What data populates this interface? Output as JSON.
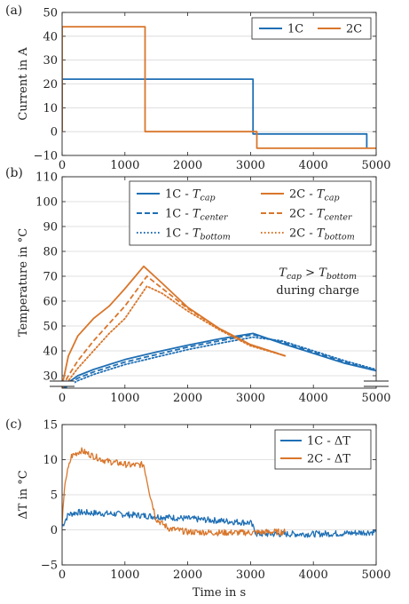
{
  "figure": {
    "panels": [
      {
        "tag": "(a)"
      },
      {
        "tag": "(b)"
      },
      {
        "tag": "(c)"
      }
    ]
  },
  "chart_data": [
    {
      "type": "line",
      "tag": "(a)",
      "xlabel": "",
      "ylabel": "Current in A",
      "xlim": [
        0,
        5000
      ],
      "ylim": [
        -10,
        50
      ],
      "xticks": [
        "0",
        "1000",
        "2000",
        "3000",
        "4000",
        "5000"
      ],
      "yticks": [
        "−10",
        "0",
        "10",
        "20",
        "30",
        "40",
        "50"
      ],
      "grid": "horizontal",
      "legend_position": "top-right",
      "legend_layout": "row",
      "series": [
        {
          "name": "1C",
          "color": "#1f6fb4",
          "style": "solid",
          "x": [
            0,
            0,
            3040,
            3040,
            4850,
            4850
          ],
          "y": [
            0,
            22,
            22,
            -1,
            -1,
            -7
          ]
        },
        {
          "name": "2C",
          "color": "#d9762b",
          "style": "solid",
          "x": [
            0,
            0,
            1320,
            1320,
            3100,
            3100,
            5000
          ],
          "y": [
            0,
            44,
            44,
            0,
            0,
            -7,
            -7
          ]
        }
      ]
    },
    {
      "type": "line",
      "tag": "(b)",
      "xlabel": "",
      "ylabel": "Temperature in °C",
      "xlim": [
        0,
        5000
      ],
      "ylim": [
        25,
        110
      ],
      "xticks": [
        "0",
        "1000",
        "2000",
        "3000",
        "4000",
        "5000"
      ],
      "yticks": [
        "30",
        "40",
        "50",
        "60",
        "70",
        "80",
        "90",
        "100",
        "110"
      ],
      "grid": "horizontal",
      "axis_break": true,
      "legend_position": "top-right",
      "legend_layout": "two-column",
      "annotation": {
        "line1_base": "T",
        "line1_sub": "cap",
        "line1_op": " > ",
        "line1_base2": "T",
        "line1_sub2": "bottom",
        "line2": "during charge",
        "anchor_x": 4070,
        "anchor_y": 70
      },
      "series": [
        {
          "name_base": "1C - ",
          "name_T": "T",
          "name_sub": "cap",
          "color": "#1f6fb4",
          "style": "solid",
          "x": [
            0,
            250,
            500,
            1000,
            1500,
            2000,
            2500,
            3040,
            3500,
            4000,
            4500,
            5000
          ],
          "y": [
            25.5,
            30,
            32.5,
            36.5,
            39.5,
            42.3,
            44.8,
            47,
            43,
            39,
            35,
            32
          ]
        },
        {
          "name_base": "1C - ",
          "name_T": "T",
          "name_sub": "center",
          "color": "#1f6fb4",
          "style": "dashed",
          "x": [
            0,
            250,
            500,
            1000,
            1500,
            2000,
            2500,
            3040,
            3500,
            4000,
            4500,
            5000
          ],
          "y": [
            25,
            29,
            31.5,
            35.5,
            38.5,
            41.5,
            44,
            46.5,
            43.5,
            39.5,
            35.5,
            32
          ]
        },
        {
          "name_base": "1C - ",
          "name_T": "T",
          "name_sub": "bottom",
          "color": "#1f6fb4",
          "style": "dotted",
          "x": [
            0,
            250,
            500,
            1000,
            1500,
            2000,
            2500,
            3040,
            3500,
            4000,
            4500,
            5000
          ],
          "y": [
            24.5,
            28,
            30.5,
            34.5,
            37.5,
            40.5,
            43,
            45.5,
            44,
            40,
            36,
            32.5
          ]
        },
        {
          "name_base": "2C - ",
          "name_T": "T",
          "name_sub": "cap",
          "color": "#d9762b",
          "style": "solid",
          "x": [
            0,
            100,
            250,
            500,
            750,
            1000,
            1300,
            1600,
            2000,
            2500,
            3000,
            3550
          ],
          "y": [
            26,
            38,
            46,
            53,
            58,
            65,
            74,
            67,
            57.5,
            49,
            42.5,
            38
          ]
        },
        {
          "name_base": "2C - ",
          "name_T": "T",
          "name_sub": "center",
          "color": "#d9762b",
          "style": "dashed",
          "x": [
            0,
            100,
            250,
            500,
            750,
            1000,
            1350,
            1600,
            2000,
            2500,
            3000,
            3550
          ],
          "y": [
            25.5,
            30,
            36,
            44,
            51,
            58,
            70,
            65,
            57,
            49,
            42.5,
            38
          ]
        },
        {
          "name_base": "2C - ",
          "name_T": "T",
          "name_sub": "bottom",
          "color": "#d9762b",
          "style": "dotted",
          "x": [
            0,
            100,
            250,
            500,
            750,
            1000,
            1350,
            1600,
            2000,
            2500,
            3000,
            3550
          ],
          "y": [
            25,
            28,
            33,
            40,
            47,
            53,
            66,
            63,
            56,
            48.5,
            42,
            38
          ]
        }
      ]
    },
    {
      "type": "line",
      "tag": "(c)",
      "xlabel": "Time in s",
      "ylabel": "ΔT in °C",
      "xlim": [
        0,
        5000
      ],
      "ylim": [
        -5,
        15
      ],
      "xticks": [
        "0",
        "1000",
        "2000",
        "3000",
        "4000",
        "5000"
      ],
      "yticks": [
        "−5",
        "0",
        "5",
        "10",
        "15"
      ],
      "grid": "horizontal",
      "legend_position": "top-right",
      "legend_layout": "column",
      "series": [
        {
          "name": "1C - ΔT",
          "color": "#1f6fb4",
          "style": "solid",
          "noisy": true,
          "x": [
            0,
            100,
            250,
            500,
            1000,
            1500,
            2000,
            2500,
            3000,
            3100,
            3500,
            4000,
            4500,
            5000
          ],
          "y": [
            0.5,
            2.2,
            2.5,
            2.4,
            2.2,
            1.9,
            1.6,
            1.3,
            1.0,
            -0.6,
            -0.6,
            -0.6,
            -0.5,
            -0.3
          ]
        },
        {
          "name": "2C - ΔT",
          "color": "#d9762b",
          "style": "solid",
          "noisy": true,
          "x": [
            0,
            50,
            150,
            300,
            500,
            700,
            900,
            1100,
            1300,
            1400,
            1500,
            1700,
            2000,
            2500,
            3000,
            3300,
            3550
          ],
          "y": [
            1,
            7,
            10.5,
            11.3,
            10.5,
            9.8,
            9.5,
            9.2,
            9.3,
            5,
            1.5,
            0.2,
            -0.3,
            -0.4,
            -0.4,
            -0.3,
            -0.3
          ]
        }
      ]
    }
  ]
}
